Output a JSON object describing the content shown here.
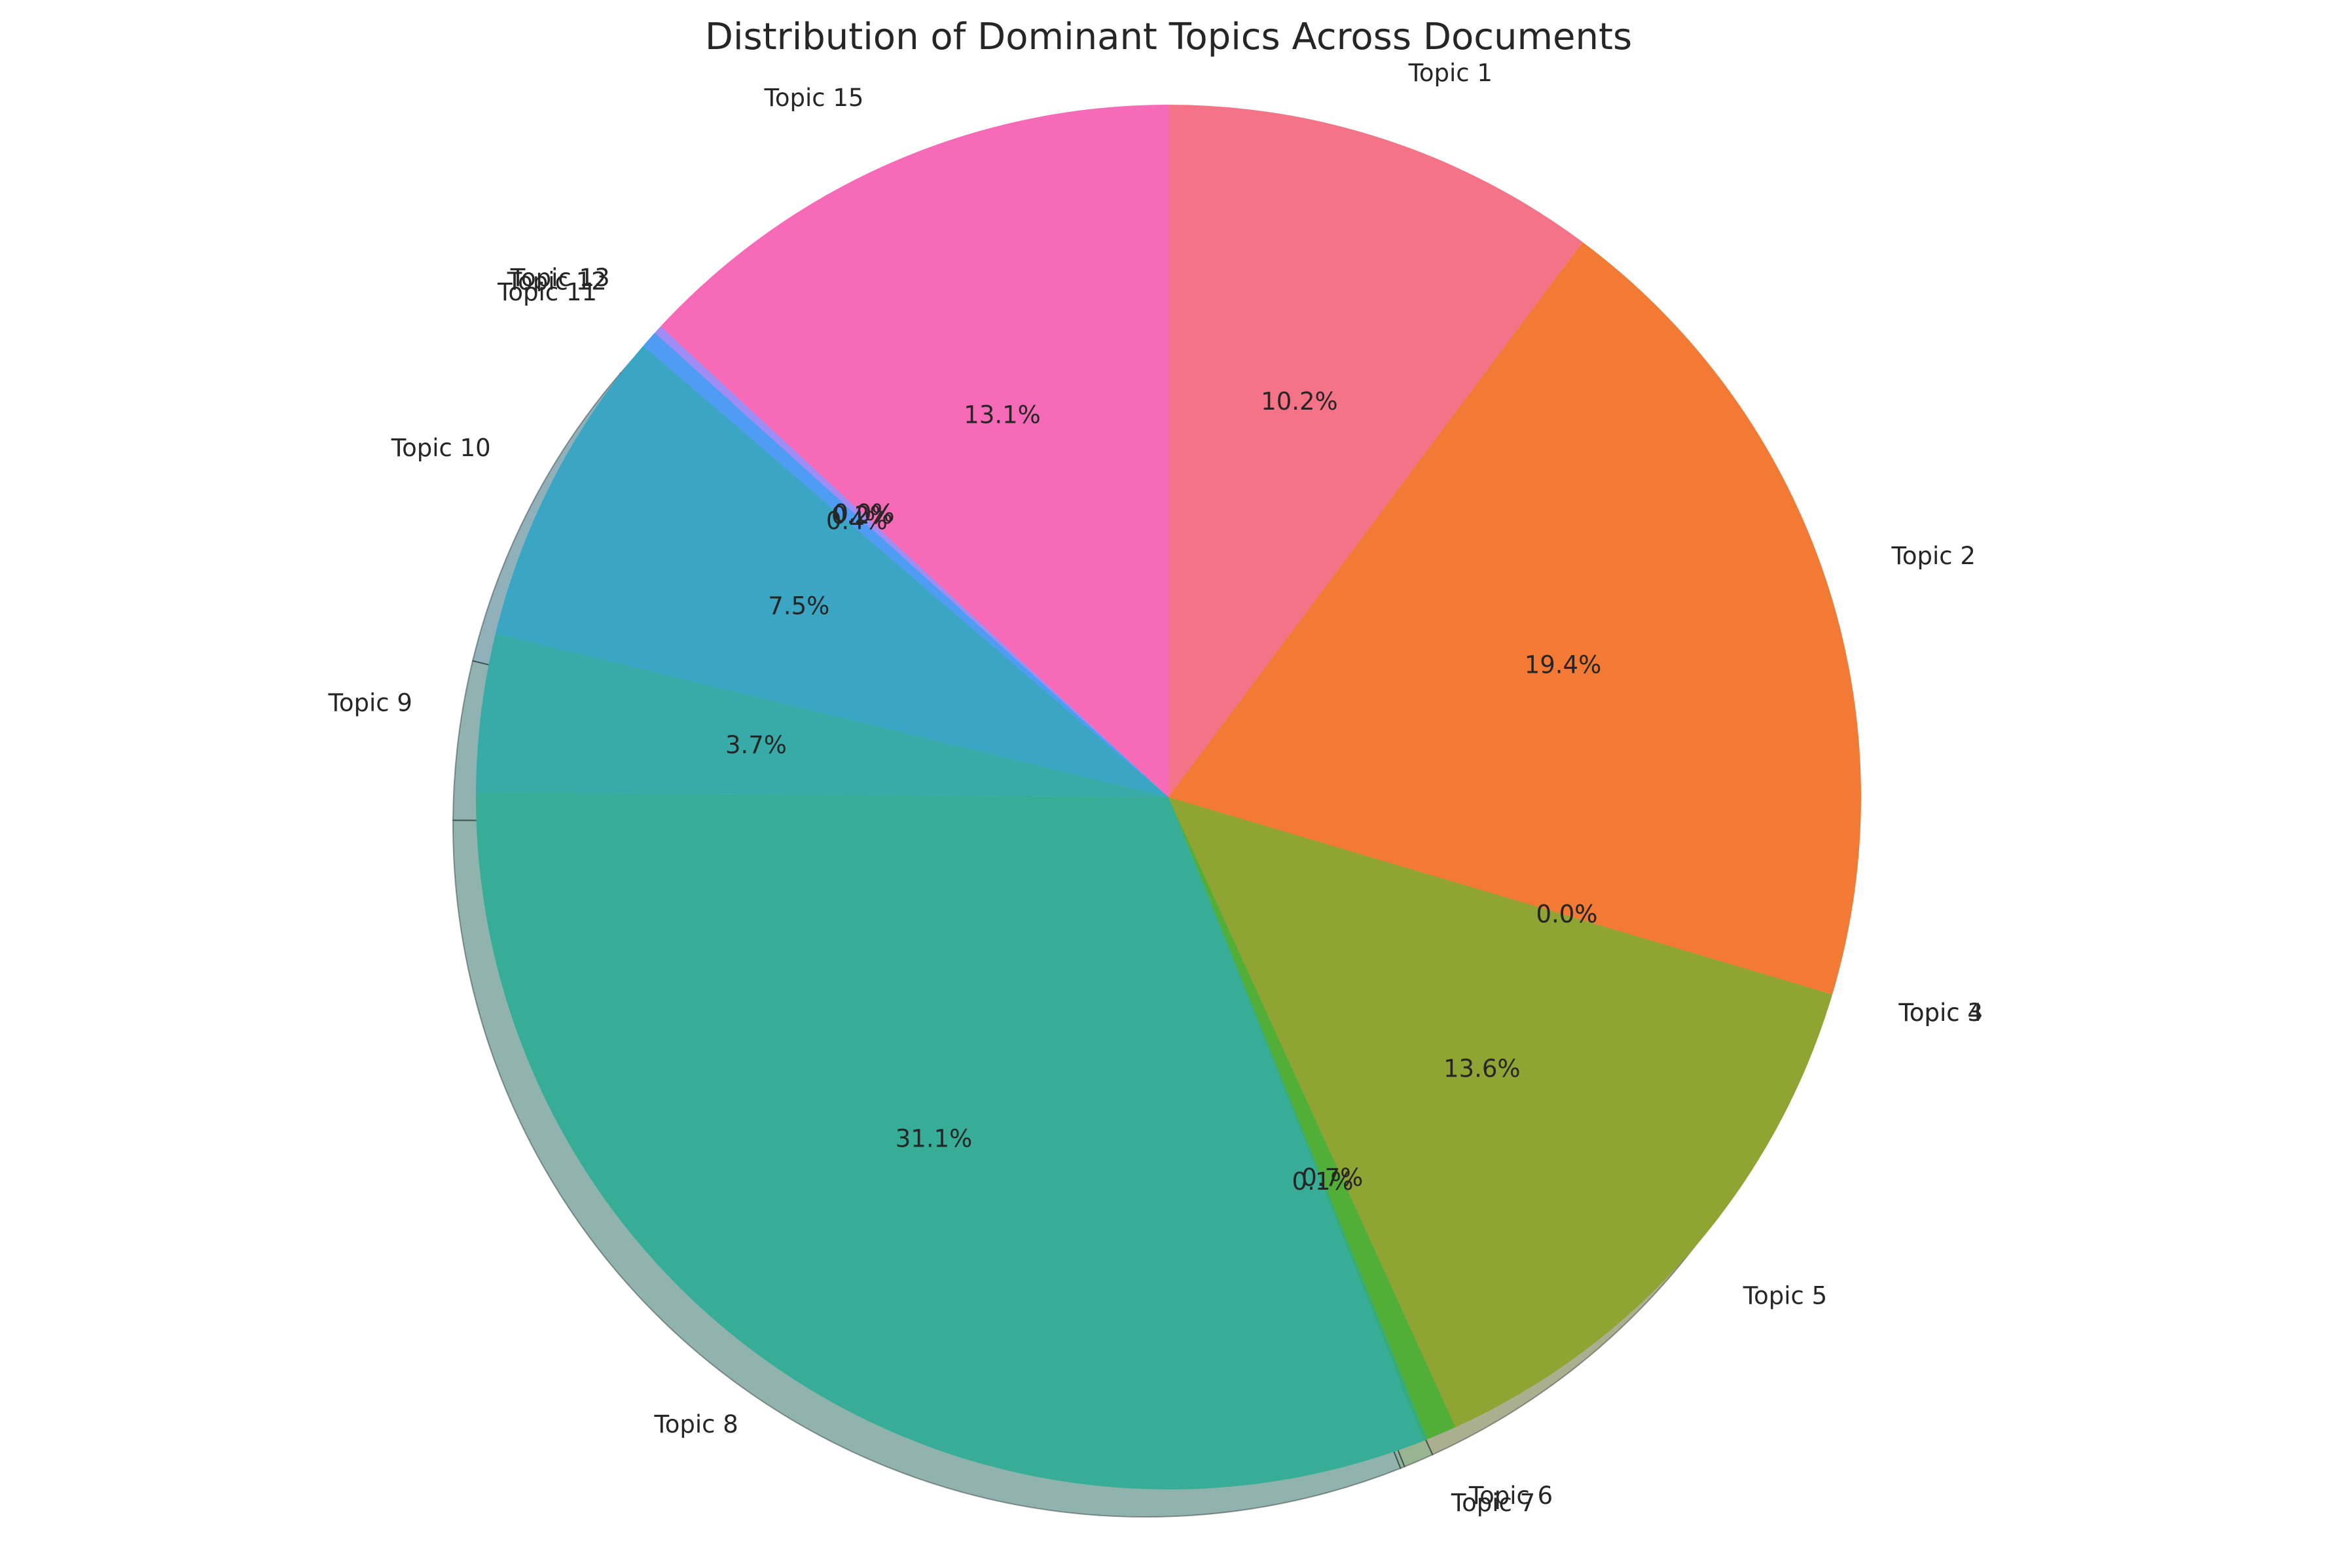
{
  "chart_data": {
    "type": "pie",
    "title": "Distribution of Dominant Topics Across Documents",
    "categories": [
      "Topic 1",
      "Topic 2",
      "Topic 3",
      "Topic 4",
      "Topic 5",
      "Topic 6",
      "Topic 7",
      "Topic 8",
      "Topic 9",
      "Topic 10",
      "Topic 11",
      "Topic 12",
      "Topic 13",
      "Topic 15"
    ],
    "values": [
      10.2,
      19.4,
      0.0,
      0.0,
      13.6,
      0.7,
      0.1,
      31.1,
      3.7,
      7.5,
      0.4,
      0.2,
      0.0,
      13.1
    ],
    "pct_labels": [
      "10.2%",
      "19.4%",
      "0.0%",
      "0.0%",
      "13.6%",
      "0.7%",
      "0.1%",
      "31.1%",
      "3.7%",
      "7.5%",
      "0.4%",
      "0.2%",
      "0.0%",
      "13.1%"
    ],
    "colors": [
      "#f57386",
      "#f27a35",
      "#cf8d34",
      "#a69c32",
      "#8fa433",
      "#51af37",
      "#35ad76",
      "#37ad97",
      "#38aba9",
      "#3aa6c4",
      "#4f9cf4",
      "#9f8cf4",
      "#e574ea",
      "#f76ab7"
    ],
    "shadow": true,
    "start_angle": 90,
    "direction": "clockwise",
    "legend": "none"
  }
}
